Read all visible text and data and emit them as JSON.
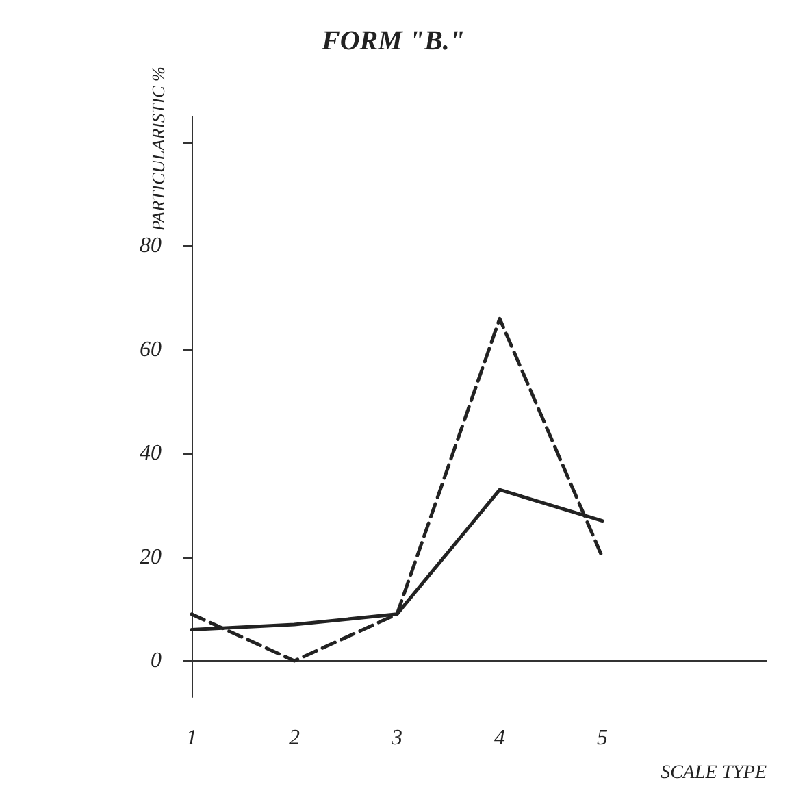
{
  "chart_data": {
    "type": "line",
    "title": "FORM \"B.\"",
    "xlabel": "SCALE TYPE",
    "ylabel": "PARTICULARISTIC %",
    "x": [
      1,
      2,
      3,
      4,
      5
    ],
    "series": [
      {
        "color": "#222222",
        "line_style": "solid",
        "values": [
          6,
          7,
          9,
          33,
          27
        ]
      },
      {
        "color": "#222222",
        "line_style": "dashed",
        "values": [
          9,
          0,
          9,
          66,
          20
        ]
      }
    ],
    "xlim": [
      1,
      6.6
    ],
    "xticks": [
      1,
      2,
      3,
      4,
      5
    ],
    "ylim": [
      -7,
      105
    ],
    "yticks": [
      0,
      20,
      40,
      60,
      80,
      {
        "value": 100,
        "label": null
      }
    ],
    "marker": "none"
  }
}
